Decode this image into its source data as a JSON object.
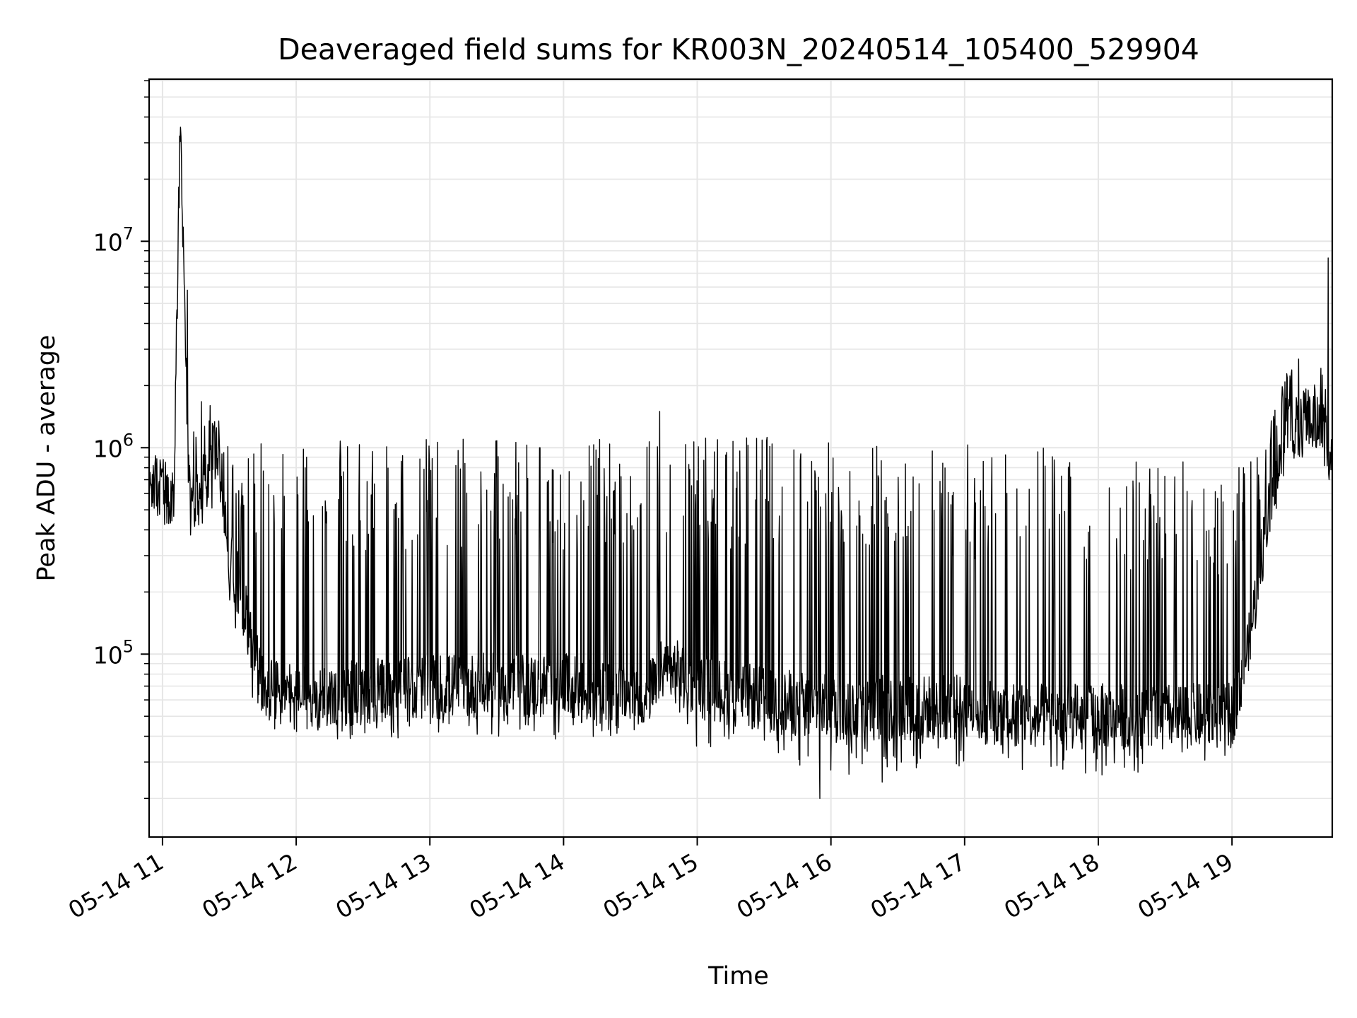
{
  "chart_data": {
    "type": "line",
    "title": "Deaveraged field sums for KR003N_20240514_105400_529904",
    "xlabel": "Time",
    "ylabel": "Peak ADU - average",
    "x_scale": "time",
    "y_scale": "log",
    "xlim": [
      "2024-05-14 10:54",
      "2024-05-14 19:45"
    ],
    "ylim": [
      13000,
      61000000
    ],
    "x_ticks": [
      "05-14 11",
      "05-14 12",
      "05-14 13",
      "05-14 14",
      "05-14 15",
      "05-14 16",
      "05-14 17",
      "05-14 18",
      "05-14 19"
    ],
    "y_ticks": [
      {
        "base": "10",
        "exp": "5",
        "value": 100000
      },
      {
        "base": "10",
        "exp": "6",
        "value": 1000000
      },
      {
        "base": "10",
        "exp": "7",
        "value": 10000000
      }
    ],
    "grid": true,
    "legend": "none",
    "series": [
      {
        "color": "#000000",
        "envelope": {
          "x": [
            "2024-05-14 10:54",
            "2024-05-14 11:00",
            "2024-05-14 11:03",
            "2024-05-14 11:05",
            "2024-05-14 11:08",
            "2024-05-14 11:12",
            "2024-05-14 11:16",
            "2024-05-14 11:20",
            "2024-05-14 11:25",
            "2024-05-14 11:30",
            "2024-05-14 11:38",
            "2024-05-14 11:45",
            "2024-05-14 12:00",
            "2024-05-14 12:30",
            "2024-05-14 13:00",
            "2024-05-14 13:30",
            "2024-05-14 14:00",
            "2024-05-14 14:30",
            "2024-05-14 14:42",
            "2024-05-14 14:45",
            "2024-05-14 15:00",
            "2024-05-14 15:30",
            "2024-05-14 16:00",
            "2024-05-14 16:30",
            "2024-05-14 17:00",
            "2024-05-14 17:30",
            "2024-05-14 18:00",
            "2024-05-14 18:30",
            "2024-05-14 19:00",
            "2024-05-14 19:08",
            "2024-05-14 19:15",
            "2024-05-14 19:25",
            "2024-05-14 19:30",
            "2024-05-14 19:35",
            "2024-05-14 19:40",
            "2024-05-14 19:45"
          ],
          "base": [
            700000,
            600000,
            500000,
            550000,
            35000000,
            550000,
            650000,
            750000,
            1000000,
            300000,
            150000,
            70000,
            60000,
            65000,
            70000,
            70000,
            70000,
            60000,
            70000,
            90000,
            70000,
            60000,
            55000,
            55000,
            55000,
            50000,
            50000,
            50000,
            50000,
            120000,
            400000,
            1300000,
            1200000,
            1400000,
            1300000,
            900000
          ],
          "low": [
            500000,
            380000,
            330000,
            380000,
            30000000,
            340000,
            420000,
            420000,
            650000,
            170000,
            75000,
            42000,
            40000,
            38000,
            40000,
            40000,
            38000,
            40000,
            50000,
            70000,
            35000,
            30000,
            26000,
            24000,
            28000,
            27000,
            25000,
            28000,
            30000,
            90000,
            300000,
            1000000,
            900000,
            1000000,
            900000,
            650000
          ],
          "high": [
            950000,
            900000,
            800000,
            900000,
            45000000,
            800000,
            2100000,
            1800000,
            1200000,
            1000000,
            1100000,
            1100000,
            1100000,
            1100000,
            1100000,
            1100000,
            1100000,
            1100000,
            1100000,
            1300000,
            1200000,
            1150000,
            1100000,
            1100000,
            1100000,
            1050000,
            1000000,
            900000,
            800000,
            900000,
            1100000,
            2500000,
            2800000,
            2000000,
            3000000,
            1800000
          ]
        },
        "spikes": [
          {
            "x": "2024-05-14 11:11",
            "y": 5800000
          },
          {
            "x": "2024-05-14 14:43",
            "y": 1500000
          },
          {
            "x": "2024-05-14 15:55",
            "y": 20000
          },
          {
            "x": "2024-05-14 16:23",
            "y": 24000
          },
          {
            "x": "2024-05-14 19:43",
            "y": 8300000
          }
        ]
      }
    ]
  }
}
